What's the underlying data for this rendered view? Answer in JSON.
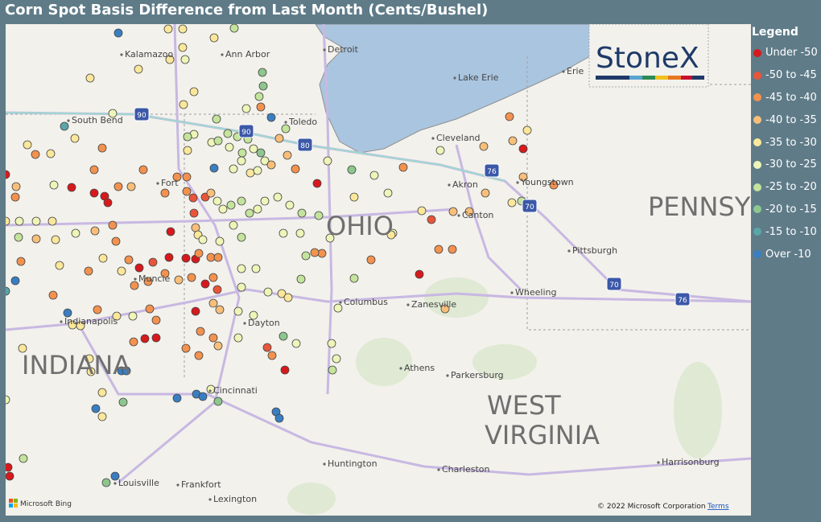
{
  "header": {
    "title": "Corn Spot Basis Difference from Last Month (Cents/Bushel)"
  },
  "legend": {
    "title": "Legend",
    "items": [
      {
        "label": "Under -50",
        "color": "#d7191c"
      },
      {
        "label": "-50 to -45",
        "color": "#e8553a"
      },
      {
        "label": "-45 to -40",
        "color": "#f3924f"
      },
      {
        "label": "-40 to -35",
        "color": "#f8bf7a"
      },
      {
        "label": "-35 to -30",
        "color": "#fbe79a"
      },
      {
        "label": "-30 to -25",
        "color": "#eef5b8"
      },
      {
        "label": "-25 to -20",
        "color": "#c4e39c"
      },
      {
        "label": "-20 to -15",
        "color": "#8dc78d"
      },
      {
        "label": "-15 to -10",
        "color": "#5aa5a8"
      },
      {
        "label": "Over -10",
        "color": "#3a7ec2"
      }
    ]
  },
  "map": {
    "cities": [
      "Kalamazoo",
      "Ann Arbor",
      "Detroit",
      "South Bend",
      "Toledo",
      "Lake Erie",
      "Erie",
      "Cleveland",
      "Fort",
      "Akron",
      "Youngstown",
      "Canton",
      "Pittsburgh",
      "Muncie",
      "Indianapolis",
      "Columbus",
      "Zanesville",
      "Wheeling",
      "Dayton",
      "Athens",
      "Parkersburg",
      "Cincinnati",
      "Huntington",
      "Charleston",
      "Harrisonburg",
      "Louisville",
      "Frankfort",
      "Lexington"
    ],
    "states": [
      "OHIO",
      "PENNSY",
      "INDIANA",
      "WEST",
      "VIRGINIA"
    ],
    "shields": [
      "90",
      "90",
      "80",
      "76",
      "70",
      "70",
      "76"
    ],
    "logo": "StoneX",
    "bing": "Microsoft Bing",
    "copyright": "© 2022 Microsoft Corporation",
    "terms": "Terms"
  }
}
